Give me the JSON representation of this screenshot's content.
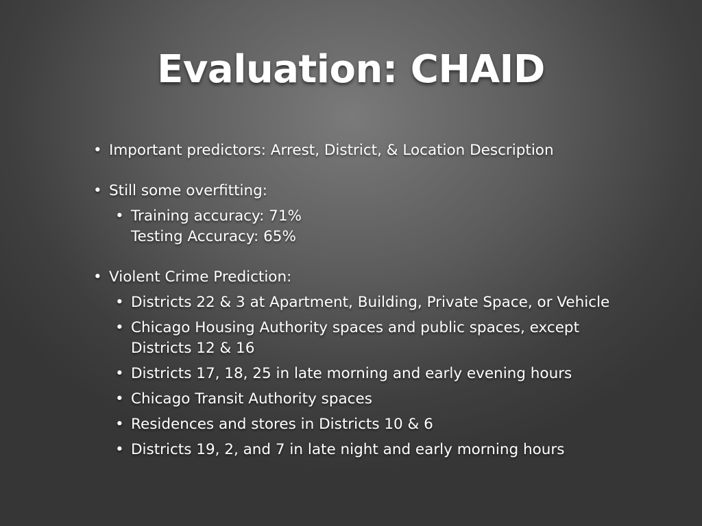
{
  "slide": {
    "title": "Evaluation: CHAID",
    "bullets": [
      {
        "text": "Important predictors: Arrest, District, & Location Description"
      },
      {
        "text": "Still some overfitting:"
      },
      {
        "lines": [
          "Training accuracy: 71%",
          "Testing Accuracy: 65%"
        ]
      },
      {
        "text": "Violent Crime Prediction:"
      },
      {
        "text": "Districts 22 & 3 at Apartment, Building, Private Space, or Vehicle"
      },
      {
        "lines": [
          "Chicago Housing Authority spaces and public spaces, except",
          "Districts 12 & 16"
        ]
      },
      {
        "text": "Districts 17, 18, 25 in late morning and early evening hours"
      },
      {
        "text": "Chicago Transit Authority spaces"
      },
      {
        "text": "Residences and stores in Districts 10 & 6"
      },
      {
        "text": "Districts 19, 2, and 7 in late night and early morning hours"
      }
    ],
    "bullet_glyph": "•"
  }
}
